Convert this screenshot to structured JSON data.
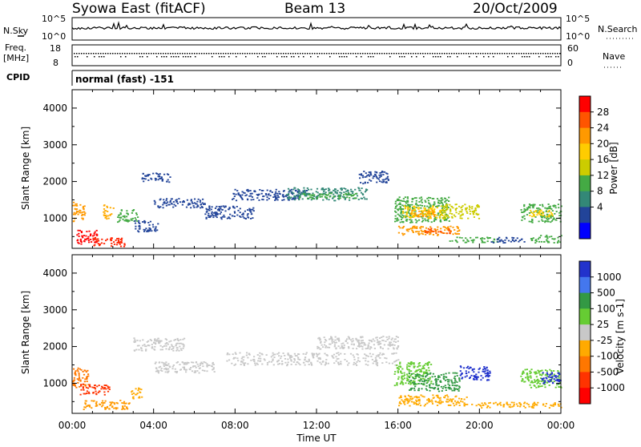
{
  "header": {
    "title": "Syowa East (fitACF)",
    "beam": "Beam 13",
    "date": "20/Oct/2009"
  },
  "noise_panel": {
    "left_label": "N.Sky",
    "right_label": "N.Search",
    "left_ticks": [
      "10^5",
      "10^0"
    ],
    "right_ticks": [
      "10^5",
      "10^0"
    ]
  },
  "freq_panel": {
    "left_label_line1": "Freq.",
    "left_label_line2": "[MHz]",
    "right_label": "Nave",
    "left_ticks": [
      "18",
      "8"
    ],
    "right_ticks": [
      "60",
      "0"
    ]
  },
  "cpid": {
    "label": "CPID",
    "value": "normal (fast) -151"
  },
  "time_axis": {
    "label": "Time UT",
    "ticks": [
      "00:00",
      "04:00",
      "08:00",
      "12:00",
      "16:00",
      "20:00",
      "00:00"
    ]
  },
  "chart_data": [
    {
      "type": "heatmap",
      "panel": "power",
      "ylabel": "Slant Range [km]",
      "ylim": [
        180,
        4500
      ],
      "y_ticks": [
        "4000",
        "3000",
        "2000",
        "1000"
      ],
      "x_range_hours": [
        0,
        24
      ],
      "colorbar_label": "Power [dB]",
      "colorbar_ticks": [
        "28",
        "24",
        "20",
        "16",
        "12",
        "8",
        "4"
      ],
      "colorbar_colors": [
        "#ff0000",
        "#ff5500",
        "#ff9900",
        "#ffcc00",
        "#cccc00",
        "#44aa44",
        "#338877",
        "#224499",
        "#0000ff"
      ],
      "regions": [
        {
          "t": [
            0.0,
            0.6
          ],
          "r": [
            900,
            1450
          ],
          "c": "#ff9900"
        },
        {
          "t": [
            0.2,
            1.2
          ],
          "r": [
            300,
            700
          ],
          "c": "#ff0000"
        },
        {
          "t": [
            1.0,
            2.6
          ],
          "r": [
            250,
            500
          ],
          "c": "#ff2200"
        },
        {
          "t": [
            1.5,
            2.0
          ],
          "r": [
            1000,
            1400
          ],
          "c": "#ffaa00"
        },
        {
          "t": [
            2.2,
            3.2
          ],
          "r": [
            900,
            1250
          ],
          "c": "#44aa44"
        },
        {
          "t": [
            3.0,
            4.2
          ],
          "r": [
            650,
            950
          ],
          "c": "#224499"
        },
        {
          "t": [
            3.4,
            4.8
          ],
          "r": [
            2000,
            2250
          ],
          "c": "#224499"
        },
        {
          "t": [
            4.0,
            6.5
          ],
          "r": [
            1300,
            1550
          ],
          "c": "#224499"
        },
        {
          "t": [
            6.5,
            9.0
          ],
          "r": [
            1000,
            1350
          ],
          "c": "#224499"
        },
        {
          "t": [
            7.8,
            11.5
          ],
          "r": [
            1500,
            1800
          ],
          "c": "#224499"
        },
        {
          "t": [
            10.5,
            14.5
          ],
          "r": [
            1500,
            1850
          ],
          "c": "#338877"
        },
        {
          "t": [
            11.0,
            14.0
          ],
          "r": [
            1550,
            1700
          ],
          "c": "#44aa44"
        },
        {
          "t": [
            14.0,
            15.5
          ],
          "r": [
            1950,
            2300
          ],
          "c": "#224499"
        },
        {
          "t": [
            15.8,
            18.5
          ],
          "r": [
            900,
            1600
          ],
          "c": "#44aa44"
        },
        {
          "t": [
            16.2,
            18.2
          ],
          "r": [
            1000,
            1350
          ],
          "c": "#ffcc00"
        },
        {
          "t": [
            16.6,
            17.8
          ],
          "r": [
            1050,
            1250
          ],
          "c": "#ff9900"
        },
        {
          "t": [
            16.0,
            19.0
          ],
          "r": [
            550,
            800
          ],
          "c": "#ff9900"
        },
        {
          "t": [
            17.2,
            18.6
          ],
          "r": [
            600,
            750
          ],
          "c": "#ff5500"
        },
        {
          "t": [
            18.0,
            20.0
          ],
          "r": [
            1000,
            1400
          ],
          "c": "#cccc00"
        },
        {
          "t": [
            18.5,
            21.0
          ],
          "r": [
            350,
            500
          ],
          "c": "#44aa44"
        },
        {
          "t": [
            20.5,
            22.2
          ],
          "r": [
            350,
            500
          ],
          "c": "#224499"
        },
        {
          "t": [
            22.0,
            24.0
          ],
          "r": [
            900,
            1400
          ],
          "c": "#44aa44"
        },
        {
          "t": [
            22.4,
            23.6
          ],
          "r": [
            1050,
            1250
          ],
          "c": "#ffcc00"
        },
        {
          "t": [
            22.5,
            24.0
          ],
          "r": [
            350,
            550
          ],
          "c": "#44aa44"
        }
      ]
    },
    {
      "type": "heatmap",
      "panel": "velocity",
      "ylabel": "Slant Range [km]",
      "ylim": [
        180,
        4500
      ],
      "y_ticks": [
        "4000",
        "3000",
        "2000",
        "1000"
      ],
      "x_range_hours": [
        0,
        24
      ],
      "colorbar_label": "Velocity [m s-1]",
      "colorbar_ticks": [
        "1000",
        "500",
        "100",
        "25",
        "-25",
        "-100",
        "-500",
        "-1000"
      ],
      "colorbar_colors": [
        "#2233cc",
        "#4477ee",
        "#339944",
        "#66cc33",
        "#c8c8c8",
        "#ffaa00",
        "#ff7700",
        "#ff3300",
        "#ff0000"
      ],
      "regions": [
        {
          "t": [
            0.0,
            0.8
          ],
          "r": [
            900,
            1450
          ],
          "c": "#ff7700"
        },
        {
          "t": [
            0.3,
            1.8
          ],
          "r": [
            700,
            1000
          ],
          "c": "#ff3300"
        },
        {
          "t": [
            0.5,
            2.8
          ],
          "r": [
            300,
            550
          ],
          "c": "#ff9900"
        },
        {
          "t": [
            2.8,
            3.4
          ],
          "r": [
            600,
            900
          ],
          "c": "#ffaa00"
        },
        {
          "t": [
            3.0,
            5.5
          ],
          "r": [
            1900,
            2250
          ],
          "c": "#c8c8c8"
        },
        {
          "t": [
            4.0,
            7.0
          ],
          "r": [
            1300,
            1600
          ],
          "c": "#c8c8c8"
        },
        {
          "t": [
            7.5,
            16.0
          ],
          "r": [
            1500,
            1850
          ],
          "c": "#c8c8c8"
        },
        {
          "t": [
            12.0,
            16.0
          ],
          "r": [
            1950,
            2300
          ],
          "c": "#c8c8c8"
        },
        {
          "t": [
            15.8,
            17.6
          ],
          "r": [
            950,
            1600
          ],
          "c": "#66cc33"
        },
        {
          "t": [
            16.5,
            19.0
          ],
          "r": [
            800,
            1300
          ],
          "c": "#339944"
        },
        {
          "t": [
            19.0,
            20.5
          ],
          "r": [
            1100,
            1500
          ],
          "c": "#2233cc"
        },
        {
          "t": [
            16.0,
            19.5
          ],
          "r": [
            400,
            700
          ],
          "c": "#ffaa00"
        },
        {
          "t": [
            19.5,
            24.0
          ],
          "r": [
            350,
            500
          ],
          "c": "#ffaa00"
        },
        {
          "t": [
            22.0,
            24.0
          ],
          "r": [
            900,
            1400
          ],
          "c": "#66cc33"
        },
        {
          "t": [
            23.0,
            24.0
          ],
          "r": [
            1000,
            1350
          ],
          "c": "#2233cc"
        }
      ]
    }
  ]
}
